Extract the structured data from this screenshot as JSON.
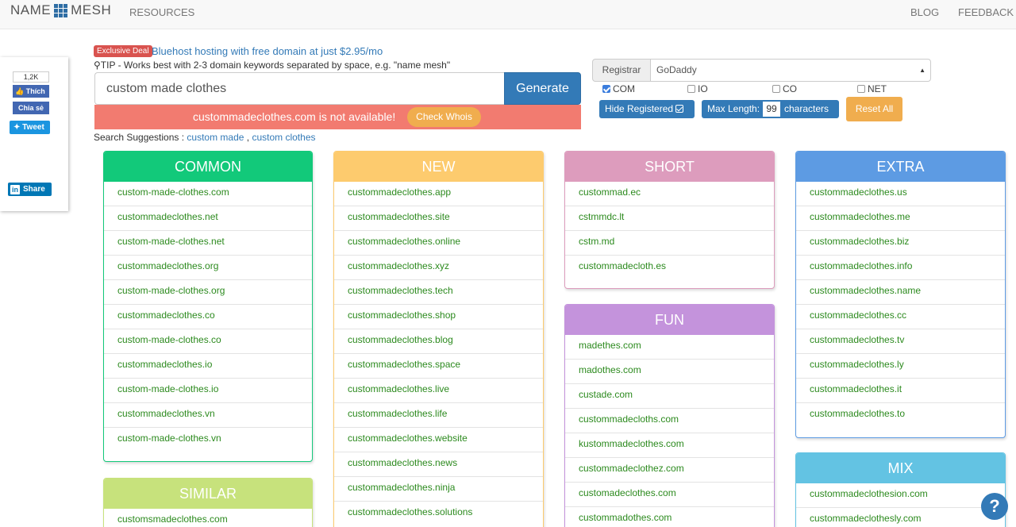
{
  "nav": {
    "logo_left": "NAME",
    "logo_right": "MESH",
    "resources": "RESOURCES",
    "blog": "BLOG",
    "feedback": "FEEDBACK"
  },
  "share": {
    "like_count": "1,2K",
    "like": "Thích",
    "share": "Chia sẻ",
    "tweet": "Tweet",
    "linkedin": "Share"
  },
  "deal": {
    "badge": "Exclusive Deal",
    "text": "Bluehost hosting with free domain at just $2.95/mo"
  },
  "tip": {
    "prefix": "TIP - Works best with 2-3 domain keywords separated by ",
    "emph": "space",
    "suffix": ", e.g. \"name mesh\""
  },
  "search": {
    "value": "custom made clothes",
    "button": "Generate"
  },
  "availability": {
    "message": "custommadeclothes.com is not available!",
    "whois": "Check Whois"
  },
  "suggestions": {
    "label": "Search Suggestions : ",
    "items": [
      "custom made",
      "custom clothes"
    ],
    "sep": " , "
  },
  "controls": {
    "registrar_label": "Registrar",
    "registrar_value": "GoDaddy",
    "tlds": [
      {
        "label": "COM",
        "checked": true
      },
      {
        "label": "IO",
        "checked": false
      },
      {
        "label": "CO",
        "checked": false
      },
      {
        "label": "NET",
        "checked": false
      }
    ],
    "hide_registered": "Hide Registered",
    "max_length_label": "Max Length:",
    "max_length_value": "99",
    "characters": "characters",
    "reset": "Reset All"
  },
  "panels": {
    "common": {
      "title": "COMMON",
      "items": [
        "custom-made-clothes.com",
        "custommadeclothes.net",
        "custom-made-clothes.net",
        "custommadeclothes.org",
        "custom-made-clothes.org",
        "custommadeclothes.co",
        "custom-made-clothes.co",
        "custommadeclothes.io",
        "custom-made-clothes.io",
        "custommadeclothes.vn",
        "custom-made-clothes.vn"
      ]
    },
    "similar": {
      "title": "SIMILAR",
      "items": [
        "customsmadeclothes.com"
      ]
    },
    "new": {
      "title": "NEW",
      "items": [
        "custommadeclothes.app",
        "custommadeclothes.site",
        "custommadeclothes.online",
        "custommadeclothes.xyz",
        "custommadeclothes.tech",
        "custommadeclothes.shop",
        "custommadeclothes.blog",
        "custommadeclothes.space",
        "custommadeclothes.live",
        "custommadeclothes.life",
        "custommadeclothes.website",
        "custommadeclothes.news",
        "custommadeclothes.ninja",
        "custommadeclothes.solutions"
      ]
    },
    "short": {
      "title": "SHORT",
      "items": [
        "custommad.ec",
        "cstmmdc.lt",
        "cstm.md",
        "custommadecloth.es"
      ]
    },
    "fun": {
      "title": "FUN",
      "items": [
        "madethes.com",
        "madothes.com",
        "custade.com",
        "custommadecloths.com",
        "kustommadeclothes.com",
        "custommadeclothez.com",
        "customadeclothes.com",
        "custommadothes.com"
      ]
    },
    "extra": {
      "title": "EXTRA",
      "items": [
        "custommadeclothes.us",
        "custommadeclothes.me",
        "custommadeclothes.biz",
        "custommadeclothes.info",
        "custommadeclothes.name",
        "custommadeclothes.cc",
        "custommadeclothes.tv",
        "custommadeclothes.ly",
        "custommadeclothes.it",
        "custommadeclothes.to"
      ]
    },
    "mix": {
      "title": "MIX",
      "items": [
        "custommadeclothesion.com",
        "custommadeclothesly.com"
      ]
    }
  },
  "colors": {
    "common": "#12c97a",
    "new": "#fdcb6e",
    "short": "#dd9cbd",
    "fun": "#c493dc",
    "extra": "#5d9be3",
    "similar": "#c7e27c",
    "mix": "#63c3e3",
    "domain_text": "#2c8a1e"
  },
  "help": "?"
}
